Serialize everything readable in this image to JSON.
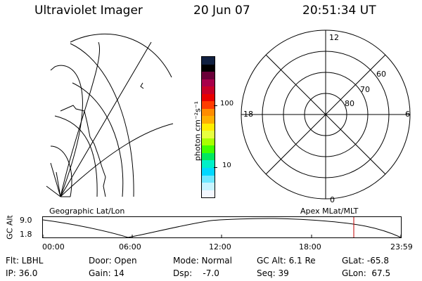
{
  "header": {
    "instrument": "Ultraviolet Imager",
    "date": "20 Jun 07",
    "time": "20:51:34 UT"
  },
  "colorbar": {
    "unit_label": "photon cm⁻²s⁻¹",
    "ticks": [
      "100",
      "10"
    ],
    "colors": [
      "#102040",
      "#000000",
      "#6a0038",
      "#a8004a",
      "#c80028",
      "#e80000",
      "#ff3c00",
      "#ff8c00",
      "#ffb000",
      "#ffee00",
      "#e8ff40",
      "#a8ff00",
      "#40ff00",
      "#00e860",
      "#00f0c8",
      "#00d8ff",
      "#70e8ff",
      "#c8f4ff",
      "#f4f8ff"
    ]
  },
  "geo_panel": {
    "label": "Geographic Lat/Lon"
  },
  "polar_panel": {
    "label": "Apex MLat/MLT",
    "mlt_labels": {
      "top": "12",
      "left": "18",
      "right": "6",
      "bottom": "0"
    },
    "lat_labels": [
      "60",
      "70",
      "80"
    ]
  },
  "altitude_plot": {
    "y_title": "GC Alt",
    "y_ticks": [
      "9.0",
      "1.8"
    ],
    "x_ticks": [
      "00:00",
      "06:00",
      "12:00",
      "18:00",
      "23:59"
    ],
    "marker_color": "#c00000"
  },
  "status": {
    "flt": "Flt: LBHL",
    "ip": "IP: 36.0",
    "door": "Door: Open",
    "gain": "Gain: 14",
    "mode": "Mode: Normal",
    "dsp": "Dsp:    -7.0",
    "gc_alt": "GC Alt: 6.1 Re",
    "seq": "Seq: 39",
    "glat": "GLat: -65.8",
    "glon": "GLon:  67.5"
  }
}
